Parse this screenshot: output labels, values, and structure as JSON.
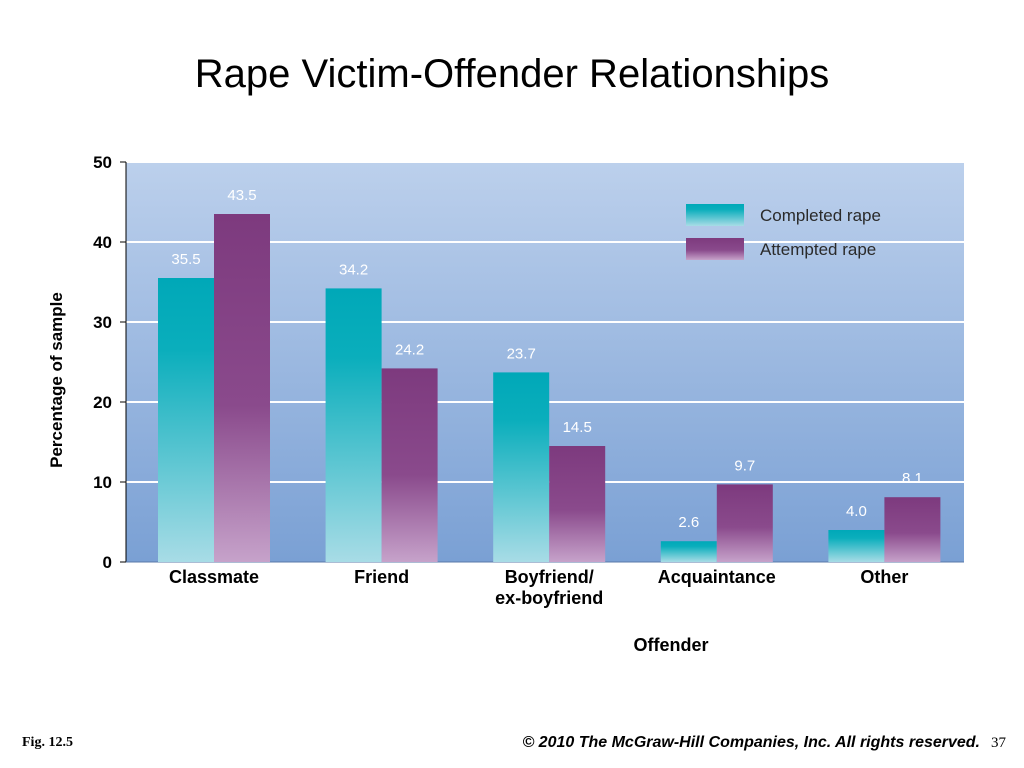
{
  "slide": {
    "title": "Rape Victim-Offender Relationships",
    "fig_label": "Fig. 12.5",
    "copyright": "© 2010 The McGraw-Hill Companies, Inc. All rights reserved.",
    "page_number": "37"
  },
  "chart_data": {
    "type": "bar",
    "categories": [
      "Classmate",
      "Friend",
      "Boyfriend/\nex-boyfriend",
      "Acquaintance",
      "Other"
    ],
    "series": [
      {
        "name": "Completed rape",
        "values": [
          35.5,
          34.2,
          23.7,
          2.6,
          4.0
        ],
        "value_labels": [
          "35.5",
          "34.2",
          "23.7",
          "2.6",
          "4.0"
        ],
        "color": "#00a8b8"
      },
      {
        "name": "Attempted rape",
        "values": [
          43.5,
          24.2,
          14.5,
          9.7,
          8.1
        ],
        "value_labels": [
          "43.5",
          "24.2",
          "14.5",
          "9.7",
          "8.1"
        ],
        "color": "#7d3a7e"
      }
    ],
    "title": "",
    "xlabel": "Offender",
    "ylabel": "Percentage of sample",
    "ylim": [
      0,
      50
    ],
    "yticks": [
      "0",
      "10",
      "20",
      "30",
      "40",
      "50"
    ],
    "grid": true,
    "legend_position": "top-right",
    "background_color": "#8fb0dc"
  }
}
